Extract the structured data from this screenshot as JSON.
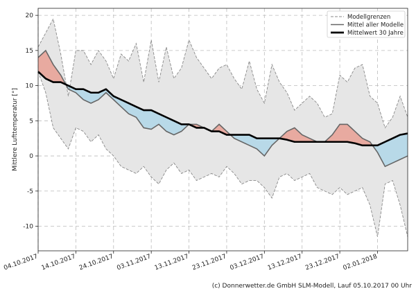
{
  "chart_data": {
    "type": "line",
    "ylabel": "Mittlere Lufttemperatur [°]",
    "ylim": [
      -13.5,
      21
    ],
    "yticks": [
      -10,
      -5,
      0,
      5,
      10,
      15,
      20
    ],
    "x_range_days": [
      0,
      98
    ],
    "x_ticks": [
      {
        "day": 0,
        "label": "04.10.2017"
      },
      {
        "day": 10,
        "label": "14.10.2017"
      },
      {
        "day": 20,
        "label": "24.10.2017"
      },
      {
        "day": 30,
        "label": "03.11.2017"
      },
      {
        "day": 40,
        "label": "13.11.2017"
      },
      {
        "day": 50,
        "label": "23.11.2017"
      },
      {
        "day": 60,
        "label": "03.12.2017"
      },
      {
        "day": 70,
        "label": "13.12.2017"
      },
      {
        "day": 80,
        "label": "23.12.2017"
      },
      {
        "day": 90,
        "label": "02.01.2018"
      }
    ],
    "grid": true,
    "legend_position": "top-right",
    "legend": [
      {
        "name": "Modellgrenzen",
        "style": "dashed-gray"
      },
      {
        "name": "Mittel aller Modelle",
        "style": "solid-gray"
      },
      {
        "name": "Mittelwert 30 Jahre",
        "style": "solid-black-thick"
      }
    ],
    "x": [
      0,
      2,
      4,
      6,
      8,
      10,
      12,
      14,
      16,
      18,
      20,
      22,
      24,
      26,
      28,
      30,
      32,
      34,
      36,
      38,
      40,
      42,
      44,
      46,
      48,
      50,
      52,
      54,
      56,
      58,
      60,
      62,
      64,
      66,
      68,
      70,
      72,
      74,
      76,
      78,
      80,
      82,
      84,
      86,
      88,
      90,
      92,
      94,
      96,
      98
    ],
    "series": [
      {
        "name": "Modellgrenzen (oben)",
        "values": [
          15.5,
          17.5,
          19.5,
          14.5,
          8.5,
          15.0,
          15.0,
          13.0,
          15.0,
          13.5,
          11.0,
          14.5,
          13.5,
          16.0,
          10.5,
          16.5,
          10.5,
          15.5,
          11.0,
          12.5,
          16.5,
          14.0,
          12.5,
          11.0,
          12.5,
          13.0,
          11.0,
          9.5,
          13.5,
          9.5,
          7.5,
          13.0,
          10.5,
          9.0,
          6.5,
          7.5,
          8.5,
          7.5,
          5.5,
          6.0,
          11.5,
          10.5,
          12.5,
          13.0,
          8.5,
          7.5,
          4.0,
          5.5,
          8.5,
          5.5
        ]
      },
      {
        "name": "Modellgrenzen (unten)",
        "values": [
          12.0,
          9.0,
          4.0,
          2.5,
          1.0,
          4.0,
          3.5,
          2.0,
          3.0,
          1.0,
          0.0,
          -1.5,
          -2.0,
          -2.5,
          -1.5,
          -3.0,
          -4.0,
          -2.0,
          -1.0,
          -2.5,
          -2.0,
          -3.5,
          -3.0,
          -2.5,
          -3.0,
          -1.5,
          -2.5,
          -4.0,
          -3.5,
          -3.5,
          -4.5,
          -6.0,
          -3.0,
          -2.5,
          -3.5,
          -3.0,
          -2.5,
          -4.5,
          -5.0,
          -5.5,
          -4.5,
          -5.5,
          -5.0,
          -4.5,
          -7.0,
          -11.5,
          -4.0,
          -3.5,
          -7.0,
          -11.5
        ]
      },
      {
        "name": "Mittel aller Modelle",
        "values": [
          14.0,
          15.0,
          13.0,
          11.5,
          9.5,
          9.0,
          8.0,
          7.5,
          8.0,
          9.0,
          8.0,
          7.0,
          6.0,
          5.5,
          4.0,
          3.8,
          4.5,
          3.5,
          3.0,
          3.5,
          4.5,
          4.5,
          4.0,
          3.5,
          4.5,
          3.5,
          2.5,
          2.0,
          1.5,
          1.0,
          0.0,
          1.5,
          2.5,
          3.5,
          4.0,
          3.0,
          2.5,
          2.0,
          2.0,
          3.0,
          4.5,
          4.5,
          3.5,
          2.5,
          2.0,
          0.5,
          -1.5,
          -1.0,
          -0.5,
          0.0
        ]
      },
      {
        "name": "Mittelwert 30 Jahre",
        "values": [
          12.0,
          11.0,
          10.5,
          10.5,
          10.0,
          9.5,
          9.5,
          9.0,
          9.0,
          9.5,
          8.5,
          8.0,
          7.5,
          7.0,
          6.5,
          6.5,
          6.0,
          5.5,
          5.0,
          4.5,
          4.5,
          4.0,
          4.0,
          3.5,
          3.5,
          3.0,
          3.0,
          3.0,
          3.0,
          2.5,
          2.5,
          2.5,
          2.5,
          2.3,
          2.0,
          2.0,
          2.0,
          2.0,
          2.0,
          2.0,
          2.0,
          2.0,
          1.8,
          1.5,
          1.5,
          1.5,
          2.0,
          2.5,
          3.0,
          3.2
        ]
      }
    ]
  },
  "credit": "(c) Donnerwetter.de GmbH SLM-Modell, Lauf 05.10.2017 00 Uhr"
}
